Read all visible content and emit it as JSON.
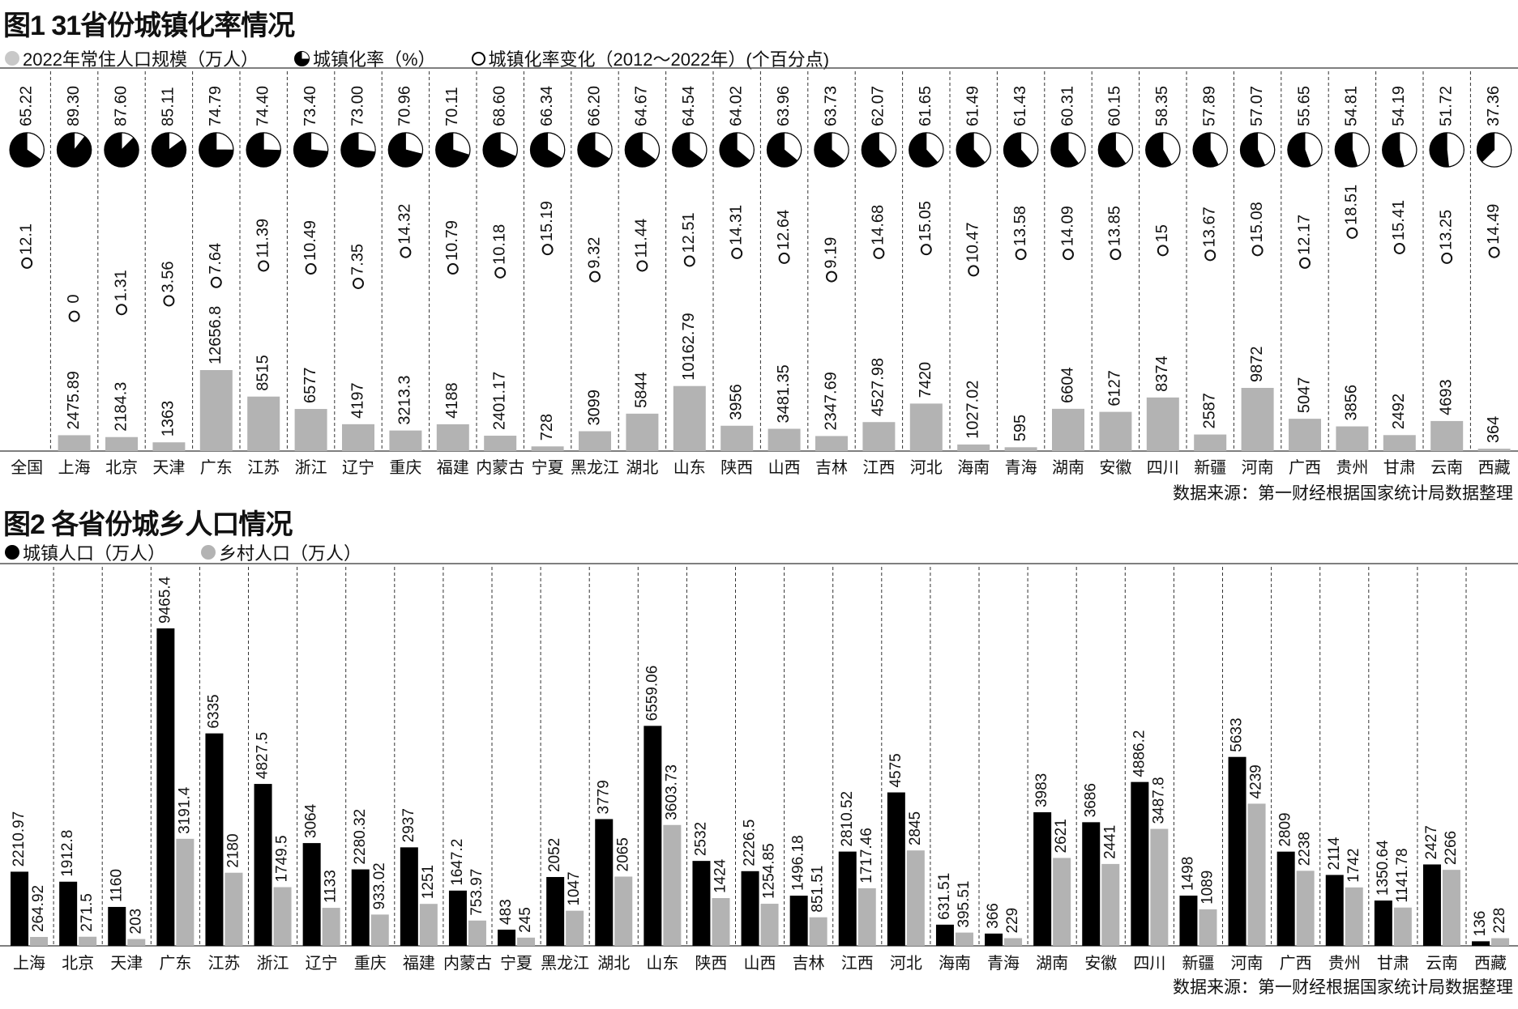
{
  "colors": {
    "population": "#b3b3b3",
    "urban": "#000000",
    "rural": "#b3b3b3",
    "rate_fill": "#000000"
  },
  "chart_data": [
    {
      "type": "bar",
      "title": "图1 31省份城镇化率情况",
      "legend": [
        "2022年常住人口规模（万人）",
        "城镇化率（%）",
        "城镇化率变化（2012～2022年）(个百分点)"
      ],
      "source": "数据来源：第一财经根据国家统计局数据整理",
      "categories": [
        "全国",
        "上海",
        "北京",
        "天津",
        "广东",
        "江苏",
        "浙江",
        "辽宁",
        "重庆",
        "福建",
        "内蒙古",
        "宁夏",
        "黑龙江",
        "湖北",
        "山东",
        "陕西",
        "山西",
        "吉林",
        "江西",
        "河北",
        "海南",
        "青海",
        "湖南",
        "安徽",
        "四川",
        "新疆",
        "河南",
        "广西",
        "贵州",
        "甘肃",
        "云南",
        "西藏"
      ],
      "urbanization_rate": [
        "65.22",
        "89.30",
        "87.60",
        "85.11",
        "74.79",
        "74.40",
        "73.40",
        "73.00",
        "70.96",
        "70.11",
        "68.60",
        "66.34",
        "66.20",
        "64.67",
        "64.54",
        "64.02",
        "63.96",
        "63.73",
        "62.07",
        "61.65",
        "61.49",
        "61.43",
        "60.31",
        "60.15",
        "58.35",
        "57.89",
        "57.07",
        "55.65",
        "54.81",
        "54.19",
        "51.72",
        "37.36"
      ],
      "rate_change": [
        "12.1",
        "0",
        "1.31",
        "3.56",
        "7.64",
        "11.39",
        "10.49",
        "7.35",
        "14.32",
        "10.79",
        "10.18",
        "15.19",
        "9.32",
        "11.44",
        "12.51",
        "14.31",
        "12.64",
        "9.19",
        "14.68",
        "15.05",
        "10.47",
        "13.58",
        "14.09",
        "13.85",
        "15",
        "13.67",
        "15.08",
        "12.17",
        "18.51",
        "15.41",
        "13.25",
        "14.49"
      ],
      "population": [
        null,
        "2475.89",
        "2184.3",
        "1363",
        "12656.8",
        "8515",
        "6577",
        "4197",
        "3213.3",
        "4188",
        "2401.17",
        "728",
        "3099",
        "5844",
        "10162.79",
        "3956",
        "3481.35",
        "2347.69",
        "4527.98",
        "7420",
        "1027.02",
        "595",
        "6604",
        "6127",
        "8374",
        "2587",
        "9872",
        "5047",
        "3856",
        "2492",
        "4693",
        "364"
      ]
    },
    {
      "type": "bar",
      "title": "图2 各省份城乡人口情况",
      "legend": [
        "城镇人口（万人）",
        "乡村人口（万人）"
      ],
      "source": "数据来源：第一财经根据国家统计局数据整理",
      "categories": [
        "上海",
        "北京",
        "天津",
        "广东",
        "江苏",
        "浙江",
        "辽宁",
        "重庆",
        "福建",
        "内蒙古",
        "宁夏",
        "黑龙江",
        "湖北",
        "山东",
        "陕西",
        "山西",
        "吉林",
        "江西",
        "河北",
        "海南",
        "青海",
        "湖南",
        "安徽",
        "四川",
        "新疆",
        "河南",
        "广西",
        "贵州",
        "甘肃",
        "云南",
        "西藏"
      ],
      "series": [
        {
          "name": "城镇人口（万人）",
          "values": [
            "2210.97",
            "1912.8",
            "1160",
            "9465.4",
            "6335",
            "4827.5",
            "3064",
            "2280.32",
            "2937",
            "1647.2",
            "483",
            "2052",
            "3779",
            "6559.06",
            "2532",
            "2226.5",
            "1496.18",
            "2810.52",
            "4575",
            "631.51",
            "366",
            "3983",
            "3686",
            "4886.2",
            "1498",
            "5633",
            "2809",
            "2114",
            "1350.64",
            "2427",
            "136"
          ]
        },
        {
          "name": "乡村人口（万人）",
          "values": [
            "264.92",
            "271.5",
            "203",
            "3191.4",
            "2180",
            "1749.5",
            "1133",
            "933.02",
            "1251",
            "753.97",
            "245",
            "1047",
            "2065",
            "3603.73",
            "1424",
            "1254.85",
            "851.51",
            "1717.46",
            "2845",
            "395.51",
            "229",
            "2621",
            "2441",
            "3487.8",
            "1089",
            "4239",
            "2238",
            "1742",
            "1141.78",
            "2266",
            "228"
          ]
        }
      ]
    }
  ]
}
